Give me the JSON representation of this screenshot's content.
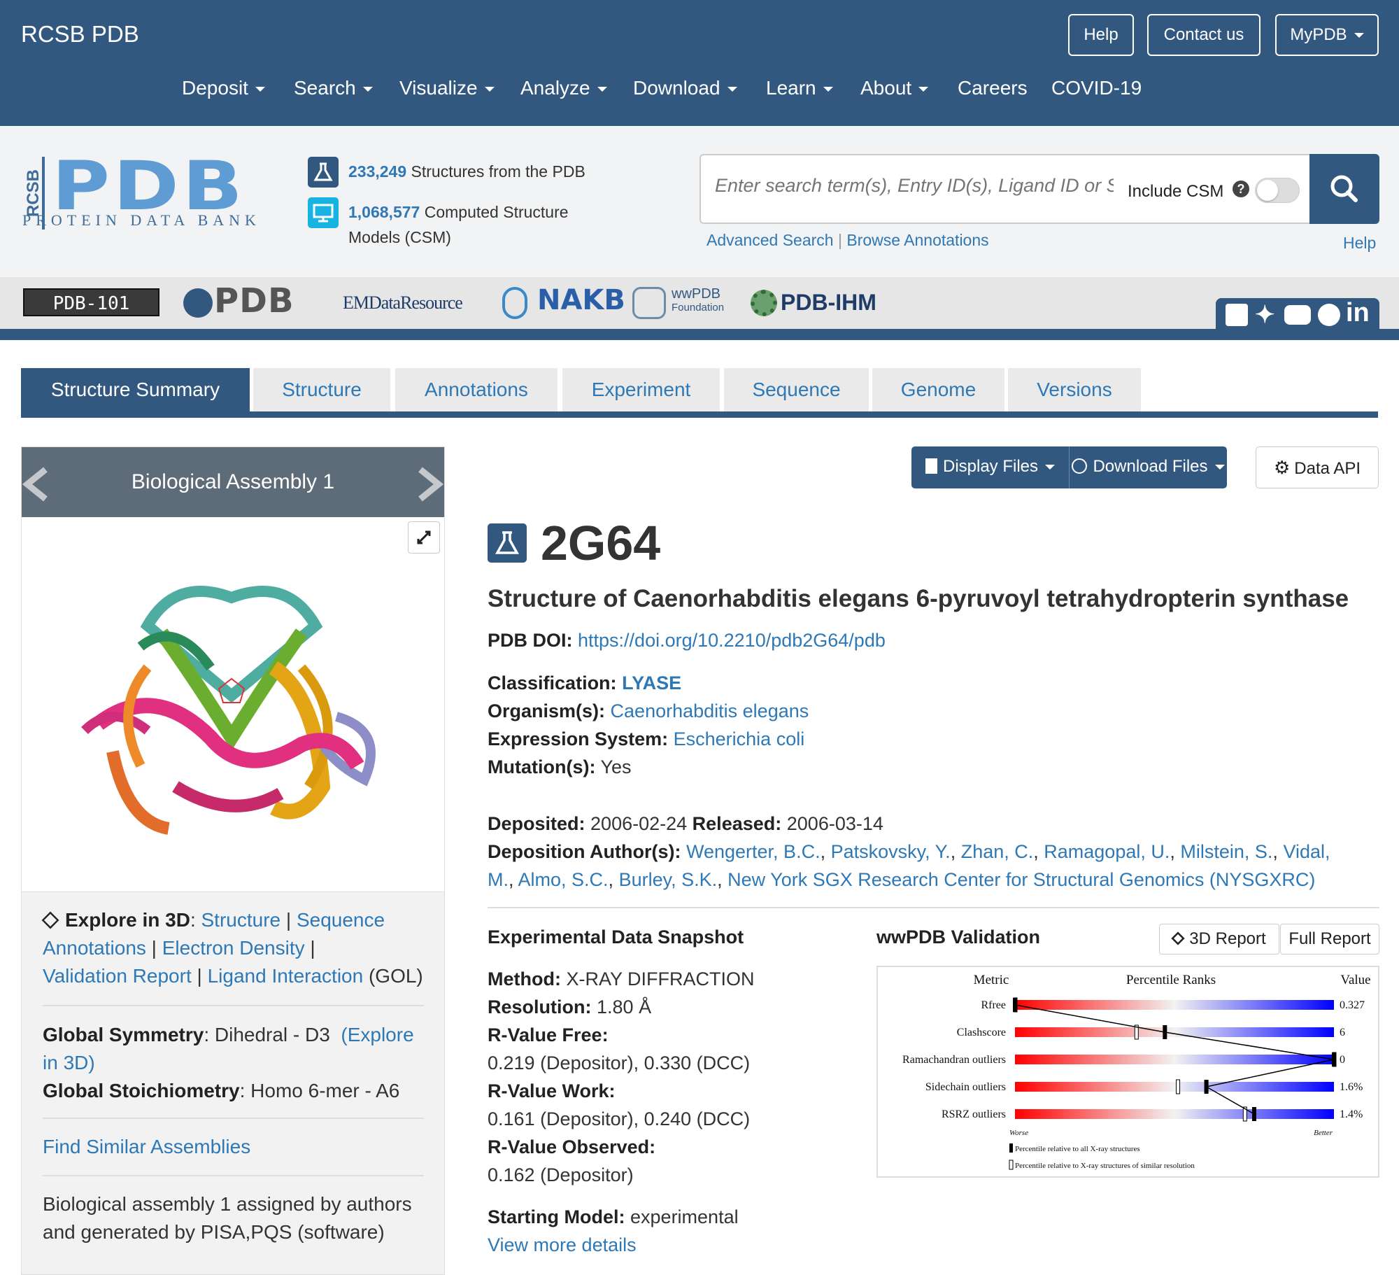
{
  "top": {
    "brand": "RCSB PDB",
    "help": "Help",
    "contact": "Contact us",
    "mypdb": "MyPDB",
    "nav": [
      "Deposit",
      "Search",
      "Visualize",
      "Analyze",
      "Download",
      "Learn",
      "About",
      "Careers",
      "COVID-19"
    ]
  },
  "header": {
    "logo_main": "PDB",
    "logo_side": "RCSB",
    "logo_sub": "PROTEIN DATA BANK",
    "structures_count": "233,249",
    "structures_text": "Structures from the PDB",
    "csm_count": "1,068,577",
    "csm_text": "Computed Structure",
    "csm_text2": "Models (CSM)",
    "search_placeholder": "Enter search term(s), Entry ID(s), Ligand ID or Sequence",
    "include_csm": "Include CSM",
    "advanced_search": "Advanced Search",
    "browse_annotations": "Browse Annotations",
    "help": "Help"
  },
  "partners": [
    "PDB-101",
    "PDB",
    "EMDataResource",
    "NAKB",
    "wwPDB",
    "Foundation",
    "PDB-IHM"
  ],
  "tabs": [
    "Structure Summary",
    "Structure",
    "Annotations",
    "Experiment",
    "Sequence",
    "Genome",
    "Versions"
  ],
  "left": {
    "assembly_title": "Biological Assembly 1",
    "explore_label": "Explore in 3D",
    "explore_links": [
      "Structure",
      "Sequence",
      "Annotations",
      "Electron Density",
      "Validation Report",
      "Ligand Interaction"
    ],
    "ligand": "(GOL)",
    "global_symmetry_label": "Global Symmetry",
    "global_symmetry": "Dihedral - D3",
    "explore_3d": "(Explore in 3D)",
    "global_stoich_label": "Global Stoichiometry",
    "global_stoich": "Homo 6-mer - A6",
    "find_similar": "Find Similar Assemblies",
    "assembly_note": "Biological assembly 1 assigned by authors and generated by PISA,PQS (software)"
  },
  "buttons": {
    "display_files": "Display Files",
    "download_files": "Download Files",
    "data_api": "Data API"
  },
  "entry": {
    "id": "2G64",
    "title": "Structure of Caenorhabditis elegans 6-pyruvoyl tetrahydropterin synthase",
    "doi_label": "PDB DOI:",
    "doi": "https://doi.org/10.2210/pdb2G64/pdb",
    "classification_label": "Classification:",
    "classification": "LYASE",
    "organism_label": "Organism(s):",
    "organism": "Caenorhabditis elegans",
    "expression_label": "Expression System:",
    "expression": "Escherichia coli",
    "mutation_label": "Mutation(s):",
    "mutation": "Yes",
    "deposited_label": "Deposited:",
    "deposited": "2006-02-24",
    "released_label": "Released:",
    "released": "2006-03-14",
    "authors_label": "Deposition Author(s):",
    "authors_line1": [
      "Wengerter, B.C.",
      "Patskovsky, Y.",
      "Zhan, C.",
      "Ramagopal, U.",
      "Milstein, S.",
      "Vidal,"
    ],
    "authors_line2": [
      "M.",
      "Almo, S.C.",
      "Burley, S.K.",
      "New York SGX Research Center for Structural Genomics (NYSGXRC)"
    ]
  },
  "experimental": {
    "heading": "Experimental Data Snapshot",
    "method_label": "Method:",
    "method": "X-RAY DIFFRACTION",
    "resolution_label": "Resolution:",
    "resolution": "1.80 Å",
    "rfree_label": "R-Value Free:",
    "rfree": "0.219 (Depositor), 0.330 (DCC)",
    "rwork_label": "R-Value Work:",
    "rwork": "0.161 (Depositor), 0.240 (DCC)",
    "robs_label": "R-Value Observed:",
    "robs": "0.162 (Depositor)",
    "starting_label": "Starting Model:",
    "starting": "experimental",
    "view_more": "View more details"
  },
  "validation": {
    "heading": "wwPDB Validation",
    "report_3d": "3D Report",
    "full_report": "Full Report",
    "col_metric": "Metric",
    "col_pct": "Percentile Ranks",
    "col_value": "Value",
    "worse": "Worse",
    "better": "Better",
    "legend1": "Percentile relative to all X-ray structures",
    "legend2": "Percentile relative to X-ray structures of similar resolution",
    "metrics": [
      {
        "name": "Rfree",
        "value": "0.327",
        "all": 0.0,
        "similar": 0.0
      },
      {
        "name": "Clashscore",
        "value": "6",
        "all": 0.47,
        "similar": 0.38
      },
      {
        "name": "Ramachandran outliers",
        "value": "0",
        "all": 1.0,
        "similar": 1.0
      },
      {
        "name": "Sidechain outliers",
        "value": "1.6%",
        "all": 0.6,
        "similar": 0.51
      },
      {
        "name": "RSRZ outliers",
        "value": "1.4%",
        "all": 0.75,
        "similar": 0.72
      }
    ]
  }
}
